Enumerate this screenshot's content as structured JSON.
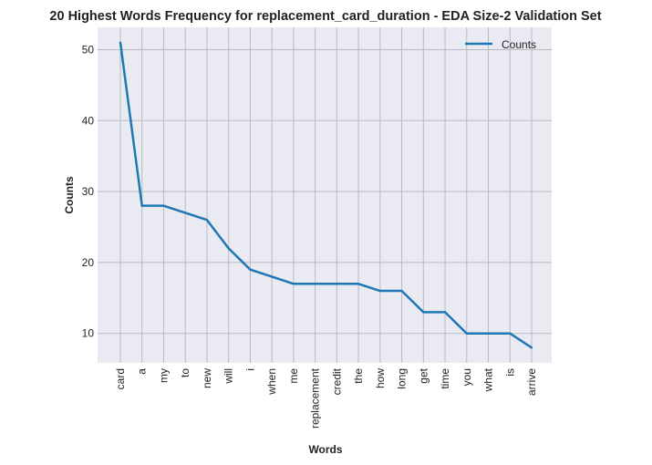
{
  "chart_data": {
    "type": "line",
    "title": "20 Highest Words Frequency for replacement_card_duration - EDA Size-2 Validation Set",
    "xlabel": "Words",
    "ylabel": "Counts",
    "categories": [
      "card",
      "a",
      "my",
      "to",
      "new",
      "will",
      "i",
      "when",
      "me",
      "replacement",
      "credit",
      "the",
      "how",
      "long",
      "get",
      "time",
      "you",
      "what",
      "is",
      "arrive"
    ],
    "series": [
      {
        "name": "Counts",
        "color": "#1f77b4",
        "values": [
          51,
          28,
          28,
          27,
          26,
          22,
          19,
          18,
          17,
          17,
          17,
          17,
          16,
          16,
          13,
          13,
          10,
          10,
          10,
          8
        ]
      }
    ],
    "ylim": [
      5.85,
      53.15
    ],
    "yticks": [
      10,
      20,
      30,
      40,
      50
    ],
    "grid": true,
    "legend_position": "upper right",
    "colors": {
      "plot_background": "#eaeaf2",
      "grid": "#b9b9c3"
    }
  }
}
